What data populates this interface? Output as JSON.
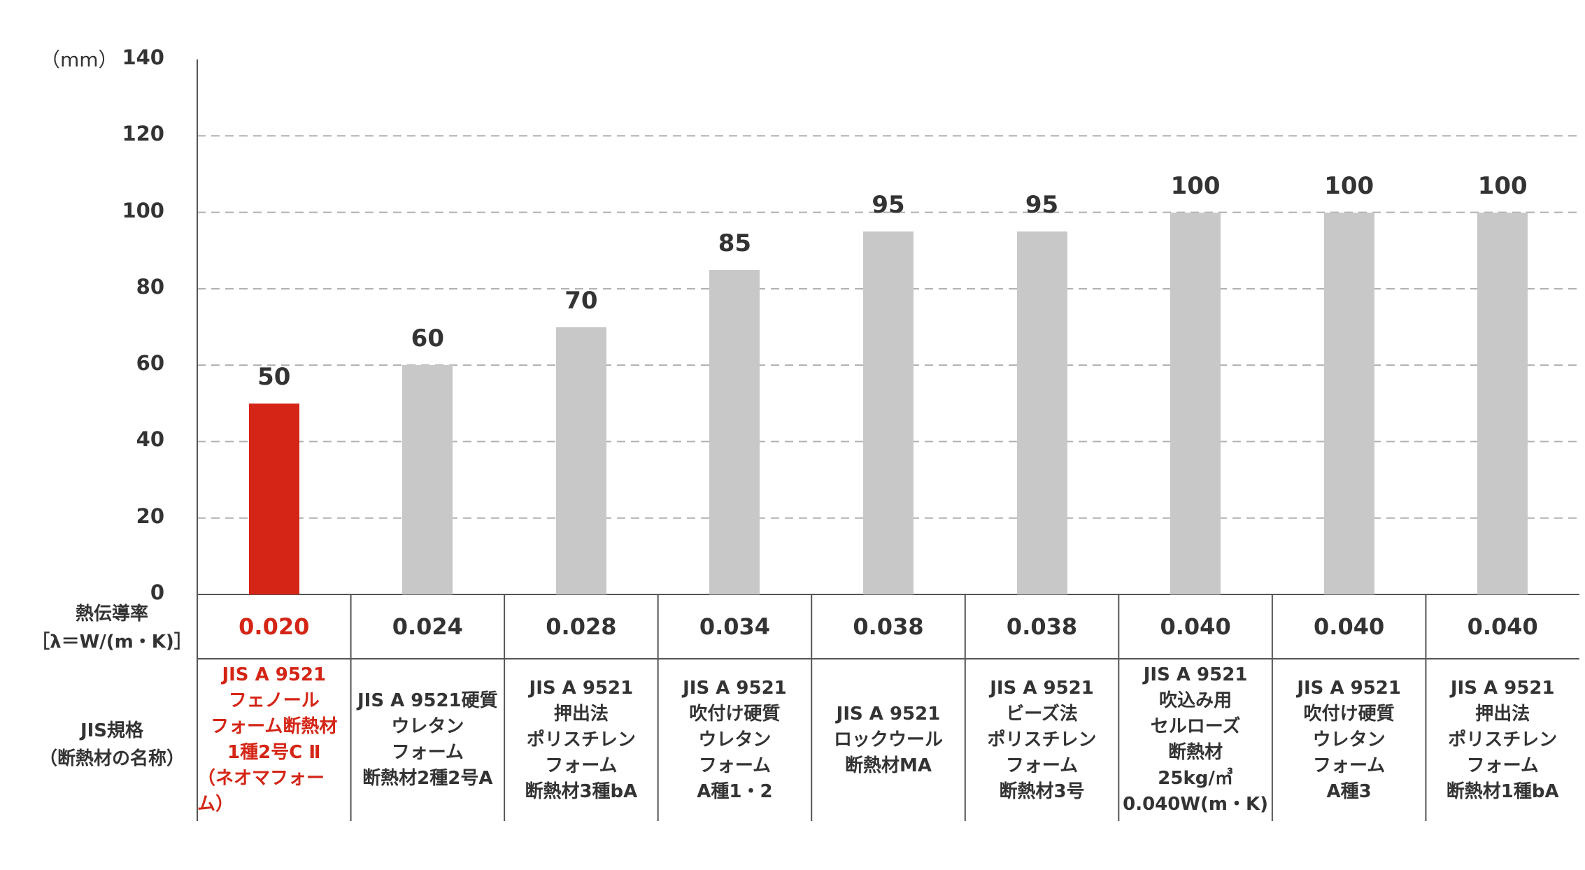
{
  "chart_data": {
    "type": "bar",
    "unit_label": "（mm）",
    "ylim": [
      0,
      140
    ],
    "yticks": [
      0,
      20,
      40,
      60,
      80,
      100,
      120,
      140
    ],
    "grid": "dashed-horizontal",
    "highlight_color": "#d42516",
    "bar_color": "#c8c8c8",
    "values": [
      50,
      60,
      70,
      85,
      95,
      95,
      100,
      100,
      100
    ],
    "value_labels": [
      "50",
      "60",
      "70",
      "85",
      "95",
      "95",
      "100",
      "100",
      "100"
    ],
    "row_headers": {
      "lambda": [
        "熱伝導率",
        "［λ＝W/(m・K)］"
      ],
      "jis": [
        "JIS規格",
        "（断熱材の名称）"
      ]
    },
    "lambda_values": [
      "0.020",
      "0.024",
      "0.028",
      "0.034",
      "0.038",
      "0.038",
      "0.040",
      "0.040",
      "0.040"
    ],
    "jis_names": [
      [
        "JIS A 9521",
        "フェノール",
        "フォーム断熱材",
        "1種2号C Ⅱ",
        "（ネオマフォーム）"
      ],
      [
        "JIS A 9521硬質",
        "ウレタン",
        "フォーム",
        "断熱材2種2号A"
      ],
      [
        "JIS A 9521",
        "押出法",
        "ポリスチレン",
        "フォーム",
        "断熱材3種bA"
      ],
      [
        "JIS A 9521",
        "吹付け硬質",
        "ウレタン",
        "フォーム",
        "A種1・2"
      ],
      [
        "JIS A 9521",
        "ロックウール",
        "断熱材MA"
      ],
      [
        "JIS A 9521",
        "ビーズ法",
        "ポリスチレン",
        "フォーム",
        "断熱材3号"
      ],
      [
        "JIS A 9521",
        "吹込み用",
        "セルローズ",
        "断熱材",
        "25kg/㎥",
        "0.040W(m・K)"
      ],
      [
        "JIS A 9521",
        "吹付け硬質",
        "ウレタン",
        "フォーム",
        "A種3"
      ],
      [
        "JIS A 9521",
        "押出法",
        "ポリスチレン",
        "フォーム",
        "断熱材1種bA"
      ]
    ],
    "highlight_index": 0
  }
}
